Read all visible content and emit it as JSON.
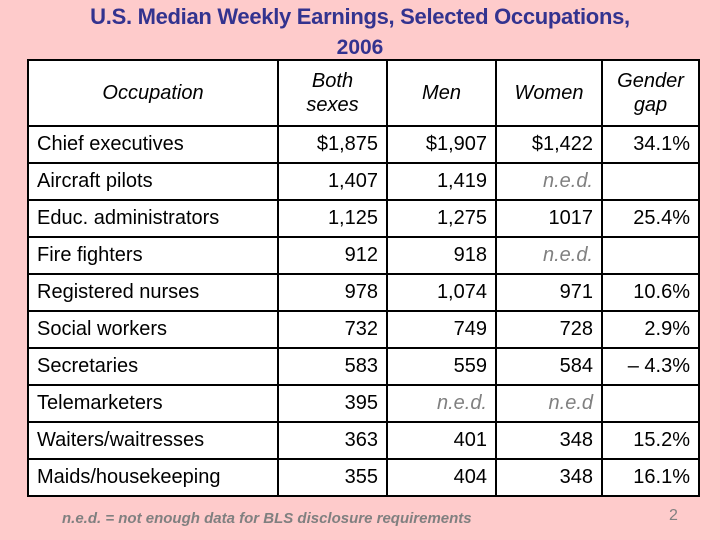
{
  "title": {
    "line1": "U.S. Median Weekly Earnings, Selected Occupations,",
    "line2": "2006"
  },
  "table": {
    "headers": [
      "Occupation",
      "Both sexes",
      "Men",
      "Women",
      "Gender gap"
    ],
    "rows": [
      {
        "occupation": "Chief executives",
        "both": "$1,875",
        "men": "$1,907",
        "women": "$1,422",
        "gap": "34.1%"
      },
      {
        "occupation": "Aircraft pilots",
        "both": "1,407",
        "men": "1,419",
        "women": "n.e.d.",
        "gap": ""
      },
      {
        "occupation": "Educ. administrators",
        "both": "1,125",
        "men": "1,275",
        "women": "1017",
        "gap": "25.4%"
      },
      {
        "occupation": "Fire fighters",
        "both": "912",
        "men": "918",
        "women": "n.e.d.",
        "gap": ""
      },
      {
        "occupation": "Registered nurses",
        "both": "978",
        "men": "1,074",
        "women": "971",
        "gap": "10.6%"
      },
      {
        "occupation": "Social workers",
        "both": "732",
        "men": "749",
        "women": "728",
        "gap": "2.9%"
      },
      {
        "occupation": "Secretaries",
        "both": "583",
        "men": "559",
        "women": "584",
        "gap": "– 4.3%"
      },
      {
        "occupation": "Telemarketers",
        "both": "395",
        "men": "n.e.d.",
        "women": "n.e.d",
        "gap": ""
      },
      {
        "occupation": "Waiters/waitresses",
        "both": "363",
        "men": "401",
        "women": "348",
        "gap": "15.2%"
      },
      {
        "occupation": "Maids/housekeeping",
        "both": "355",
        "men": "404",
        "women": "348",
        "gap": "16.1%"
      }
    ]
  },
  "footnote": "n.e.d. = not enough data for BLS disclosure requirements",
  "page_number": "2",
  "colors": {
    "background": "#fecbcb",
    "title": "#33338f",
    "muted": "#808080"
  }
}
